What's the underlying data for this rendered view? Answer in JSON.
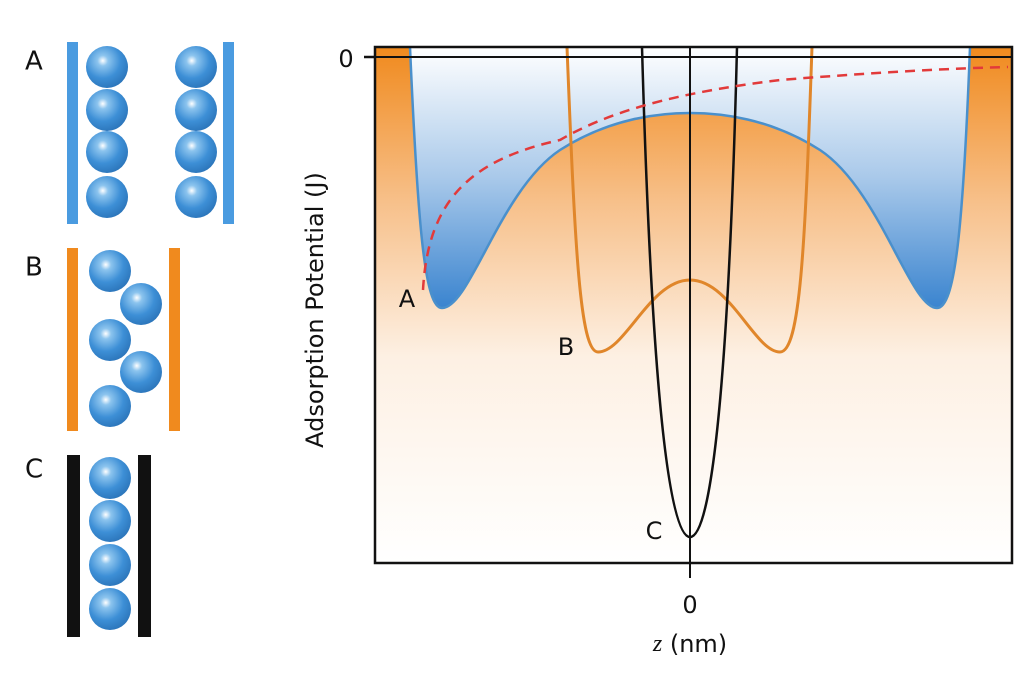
{
  "panels": [
    {
      "label": "A"
    },
    {
      "label": "B"
    },
    {
      "label": "C"
    }
  ],
  "plot": {
    "y_label": "Adsorption Potential (J)",
    "y_tick": "0",
    "x_tick": "0",
    "x_label": {
      "variable": "z",
      "unit": "(nm)"
    },
    "curves": [
      {
        "label": "A"
      },
      {
        "label": "B"
      },
      {
        "label": "C"
      }
    ]
  }
}
